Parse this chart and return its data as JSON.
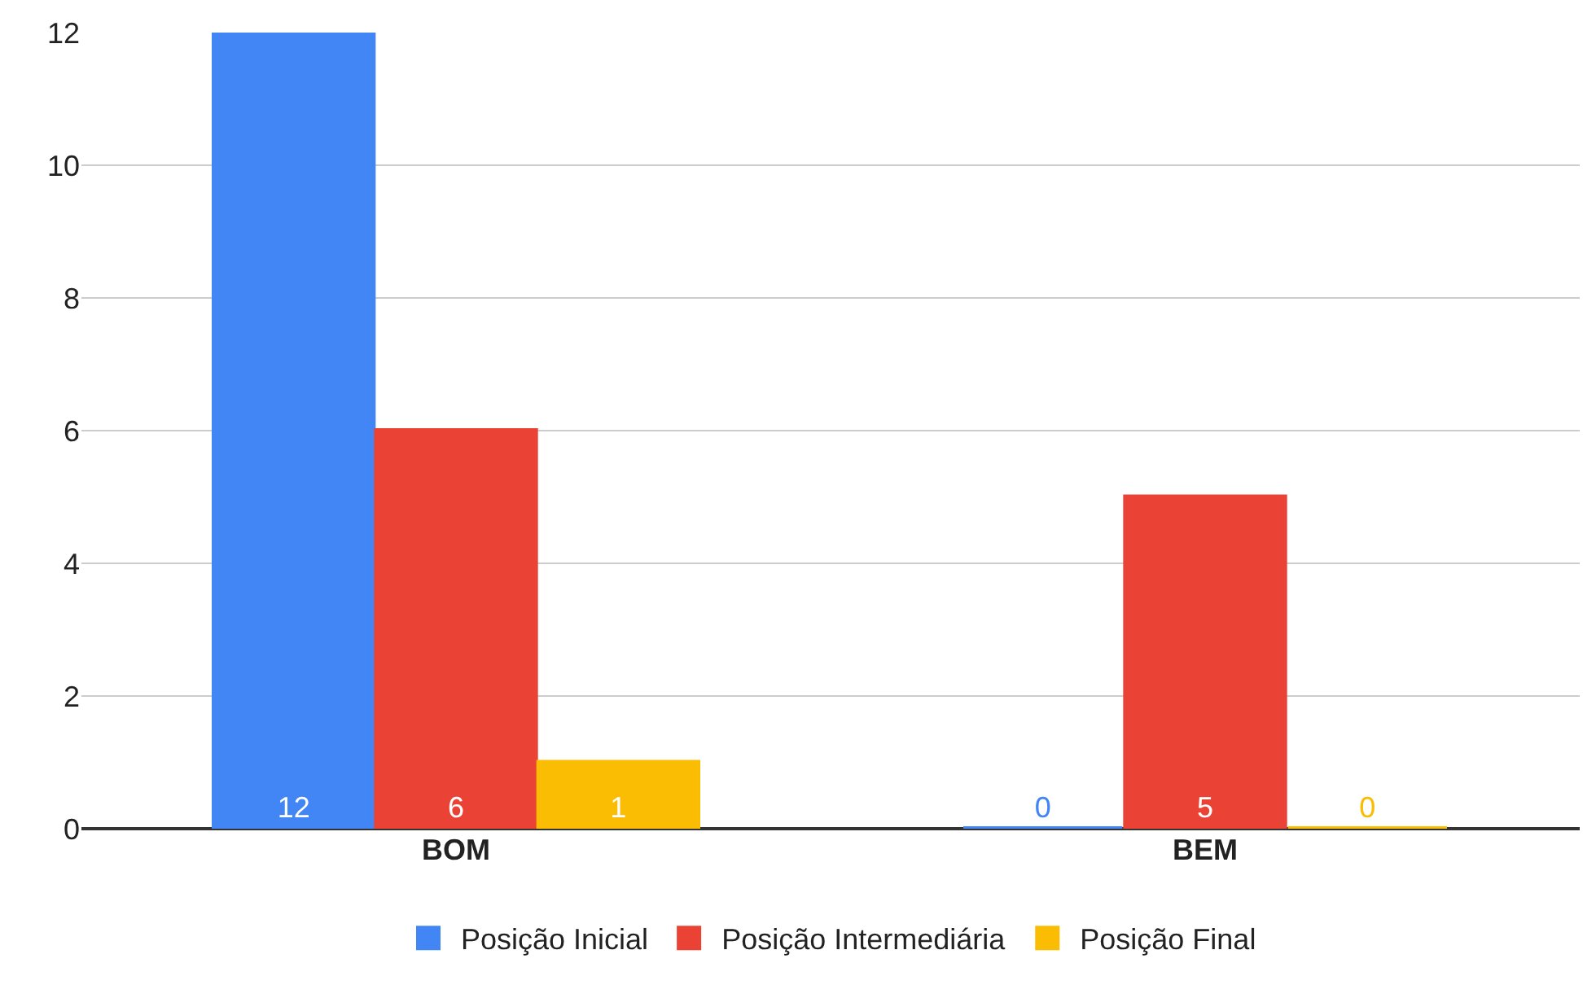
{
  "chart_data": {
    "type": "bar",
    "categories": [
      "BOM",
      "BEM"
    ],
    "series": [
      {
        "name": "Posição Inicial",
        "color": "#4285f4",
        "values": [
          12,
          0
        ]
      },
      {
        "name": "Posição Intermediária",
        "color": "#ea4335",
        "values": [
          6,
          5
        ]
      },
      {
        "name": "Posição Final",
        "color": "#fbbc04",
        "values": [
          1,
          0
        ]
      }
    ],
    "ylim": [
      0,
      12
    ],
    "yticks": [
      0,
      2,
      4,
      6,
      8,
      10,
      12
    ],
    "grid": "y",
    "legend": "bottom",
    "data_labels": true
  }
}
